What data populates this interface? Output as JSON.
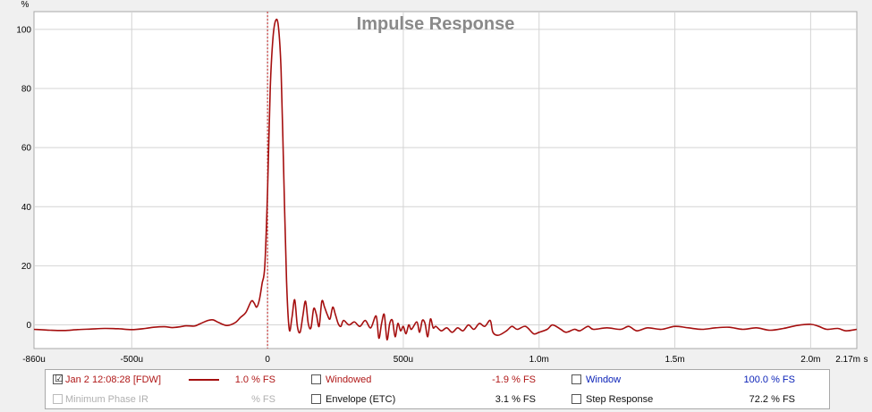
{
  "chart_data": {
    "type": "line",
    "title": "Impulse Response",
    "ylabel": "%",
    "xlabel": "s",
    "xlim": [
      -0.00086,
      0.00217
    ],
    "ylim": [
      -8,
      106
    ],
    "x_ticks": [
      {
        "value": -0.00086,
        "label": "-860u"
      },
      {
        "value": -0.0005,
        "label": "-500u"
      },
      {
        "value": 0,
        "label": "0"
      },
      {
        "value": 0.0005,
        "label": "500u"
      },
      {
        "value": 0.001,
        "label": "1.0m"
      },
      {
        "value": 0.0015,
        "label": "1.5m"
      },
      {
        "value": 0.002,
        "label": "2.0m"
      },
      {
        "value": 0.00217,
        "label": "2.17m"
      }
    ],
    "y_ticks": [
      0,
      20,
      40,
      60,
      80,
      100
    ],
    "grid": true,
    "marker_x": 0,
    "series": [
      {
        "name": "Jan 2 12:08:28 [FDW]",
        "color": "#a50f0f",
        "points": [
          [
            -0.00086,
            -1.5
          ],
          [
            -0.0008,
            -1.8
          ],
          [
            -0.00075,
            -1.9
          ],
          [
            -0.0007,
            -1.6
          ],
          [
            -0.00065,
            -1.4
          ],
          [
            -0.0006,
            -1.2
          ],
          [
            -0.00055,
            -1.3
          ],
          [
            -0.0005,
            -1.6
          ],
          [
            -0.00045,
            -1.2
          ],
          [
            -0.00042,
            -0.8
          ],
          [
            -0.00038,
            -0.6
          ],
          [
            -0.00035,
            -0.9
          ],
          [
            -0.00032,
            -0.6
          ],
          [
            -0.0003,
            -0.3
          ],
          [
            -0.00027,
            -0.4
          ],
          [
            -0.00025,
            0.3
          ],
          [
            -0.00022,
            1.5
          ],
          [
            -0.0002,
            1.7
          ],
          [
            -0.00018,
            0.8
          ],
          [
            -0.00015,
            -0.2
          ],
          [
            -0.00012,
            0.7
          ],
          [
            -0.0001,
            2.5
          ],
          [
            -8e-05,
            4.2
          ],
          [
            -6e-05,
            8.0
          ],
          [
            -5e-05,
            7.5
          ],
          [
            -4e-05,
            6.0
          ],
          [
            -3e-05,
            8.5
          ],
          [
            -2e-05,
            14
          ],
          [
            -1e-05,
            20
          ],
          [
            0,
            45
          ],
          [
            1e-05,
            80
          ],
          [
            2e-05,
            97
          ],
          [
            3e-05,
            103
          ],
          [
            4e-05,
            101
          ],
          [
            5e-05,
            86
          ],
          [
            6e-05,
            50
          ],
          [
            7e-05,
            15
          ],
          [
            8e-05,
            -1.5
          ],
          [
            9e-05,
            2.5
          ],
          [
            0.0001,
            8.5
          ],
          [
            0.00011,
            -0.5
          ],
          [
            0.00012,
            -2.5
          ],
          [
            0.00013,
            3.0
          ],
          [
            0.00014,
            8.0
          ],
          [
            0.00015,
            0.5
          ],
          [
            0.00016,
            -1.0
          ],
          [
            0.00017,
            5.5
          ],
          [
            0.00018,
            3.5
          ],
          [
            0.00019,
            -0.5
          ],
          [
            0.0002,
            8.0
          ],
          [
            0.00021,
            6.0
          ],
          [
            0.00022,
            3.5
          ],
          [
            0.00023,
            2.0
          ],
          [
            0.00024,
            6.0
          ],
          [
            0.00025,
            3.5
          ],
          [
            0.00026,
            0.5
          ],
          [
            0.00027,
            -0.5
          ],
          [
            0.00028,
            1.5
          ],
          [
            0.0003,
            0.0
          ],
          [
            0.00032,
            1.0
          ],
          [
            0.00034,
            -0.5
          ],
          [
            0.00036,
            1.5
          ],
          [
            0.00038,
            -1.0
          ],
          [
            0.0004,
            3.0
          ],
          [
            0.00041,
            -4.5
          ],
          [
            0.00042,
            0.5
          ],
          [
            0.00043,
            3.5
          ],
          [
            0.00044,
            -5.0
          ],
          [
            0.00045,
            0.5
          ],
          [
            0.00046,
            1.5
          ],
          [
            0.00047,
            -4.0
          ],
          [
            0.00048,
            0.5
          ],
          [
            0.00049,
            -2.0
          ],
          [
            0.0005,
            -0.5
          ],
          [
            0.00051,
            -3.0
          ],
          [
            0.00052,
            0.0
          ],
          [
            0.00053,
            -1.5
          ],
          [
            0.00055,
            1.0
          ],
          [
            0.00056,
            -2.5
          ],
          [
            0.00057,
            1.5
          ],
          [
            0.00058,
            0.5
          ],
          [
            0.00059,
            -4.0
          ],
          [
            0.0006,
            2.0
          ],
          [
            0.00061,
            -1.0
          ],
          [
            0.00062,
            -0.5
          ],
          [
            0.00064,
            -2.0
          ],
          [
            0.00066,
            -1.0
          ],
          [
            0.00068,
            -2.5
          ],
          [
            0.0007,
            -1.0
          ],
          [
            0.00072,
            -2.0
          ],
          [
            0.00074,
            0.0
          ],
          [
            0.00076,
            -1.5
          ],
          [
            0.00078,
            0.5
          ],
          [
            0.0008,
            -0.5
          ],
          [
            0.00082,
            1.5
          ],
          [
            0.00083,
            -2.5
          ],
          [
            0.00085,
            -3.5
          ],
          [
            0.00088,
            -2.0
          ],
          [
            0.0009,
            -0.5
          ],
          [
            0.00092,
            -1.5
          ],
          [
            0.00095,
            -0.5
          ],
          [
            0.00098,
            -3.0
          ],
          [
            0.001,
            -2.5
          ],
          [
            0.00103,
            -1.5
          ],
          [
            0.00105,
            0.0
          ],
          [
            0.00108,
            -1.5
          ],
          [
            0.0011,
            -2.5
          ],
          [
            0.00113,
            -1.5
          ],
          [
            0.00115,
            -2.0
          ],
          [
            0.00118,
            -0.5
          ],
          [
            0.0012,
            -1.5
          ],
          [
            0.00125,
            -1.0
          ],
          [
            0.0013,
            -1.5
          ],
          [
            0.00133,
            -0.5
          ],
          [
            0.00136,
            -2.0
          ],
          [
            0.0014,
            -1.0
          ],
          [
            0.00145,
            -1.5
          ],
          [
            0.0015,
            -0.5
          ],
          [
            0.00155,
            -1.0
          ],
          [
            0.0016,
            -1.5
          ],
          [
            0.00165,
            -1.0
          ],
          [
            0.0017,
            -0.8
          ],
          [
            0.00175,
            -1.5
          ],
          [
            0.0018,
            -1.0
          ],
          [
            0.00185,
            -1.8
          ],
          [
            0.0019,
            -1.2
          ],
          [
            0.00195,
            -0.2
          ],
          [
            0.002,
            0.2
          ],
          [
            0.00203,
            -0.5
          ],
          [
            0.00206,
            -1.5
          ],
          [
            0.0021,
            -1.2
          ],
          [
            0.00213,
            -2.0
          ],
          [
            0.00217,
            -1.5
          ]
        ]
      }
    ]
  },
  "legend": {
    "entries": [
      {
        "label": "Jan 2 12:08:28 [FDW]",
        "value": "1.0 % FS",
        "checked": true,
        "enabled": true,
        "color": "#b01818"
      },
      {
        "label": "Minimum Phase IR",
        "value": "% FS",
        "checked": false,
        "enabled": false,
        "color": "#b0b0b0"
      },
      {
        "label": "Windowed",
        "value": "-1.9 % FS",
        "checked": false,
        "enabled": true,
        "color": "#b01818"
      },
      {
        "label": "Envelope (ETC)",
        "value": "3.1 % FS",
        "checked": false,
        "enabled": true,
        "color": "#111111"
      },
      {
        "label": "Window",
        "value": "100.0 % FS",
        "checked": false,
        "enabled": true,
        "color": "#0c23b8"
      },
      {
        "label": "Step Response",
        "value": "72.2 % FS",
        "checked": false,
        "enabled": true,
        "color": "#111111"
      }
    ],
    "check_glyph": "☑"
  }
}
